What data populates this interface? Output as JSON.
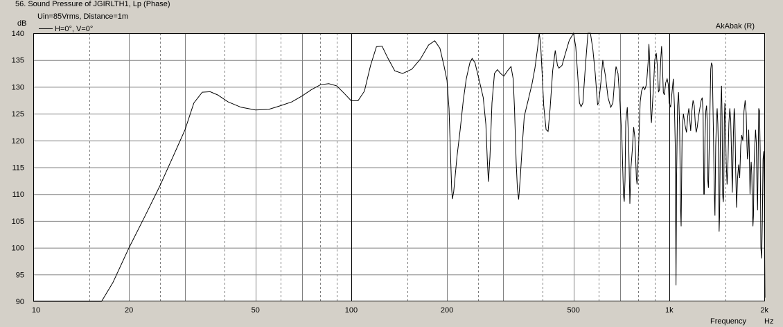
{
  "window": {
    "title": "56. Sound Pressure of JGIRLTH1, Lp (Phase)",
    "conditions": "Uin=85Vrms, Distance=1m",
    "watermark": "AkAbak (R)"
  },
  "chart_data": {
    "type": "line",
    "title": "56. Sound Pressure of JGIRLTH1, Lp (Phase)",
    "subtitle": "Uin=85Vrms, Distance=1m",
    "ylabel": "dB",
    "xlabel": "Frequency",
    "xunit": "Hz",
    "xscale": "log",
    "xlim": [
      10,
      2000
    ],
    "ylim": [
      90,
      140
    ],
    "grid": true,
    "legend_position": "top-left",
    "colors": {
      "background": "#ffffff",
      "line": "#000000",
      "grid": "#808080"
    },
    "x_tick_labels": [
      {
        "x": 10,
        "label": "10"
      },
      {
        "x": 20,
        "label": "20"
      },
      {
        "x": 50,
        "label": "50"
      },
      {
        "x": 100,
        "label": "100"
      },
      {
        "x": 200,
        "label": "200"
      },
      {
        "x": 500,
        "label": "500"
      },
      {
        "x": 1000,
        "label": "1k"
      },
      {
        "x": 2000,
        "label": "2k"
      }
    ],
    "y_ticks": [
      90,
      95,
      100,
      105,
      110,
      115,
      120,
      125,
      130,
      135,
      140
    ],
    "series": [
      {
        "name": "H=0°, V=0°",
        "points": [
          [
            10,
            90
          ],
          [
            16.4,
            90
          ],
          [
            17.8,
            93.5
          ],
          [
            20,
            100
          ],
          [
            22.5,
            106
          ],
          [
            25,
            111.5
          ],
          [
            28,
            118
          ],
          [
            30,
            122
          ],
          [
            32,
            127
          ],
          [
            34,
            129
          ],
          [
            36,
            129.1
          ],
          [
            38,
            128.5
          ],
          [
            41,
            127.2
          ],
          [
            45,
            126.2
          ],
          [
            50,
            125.7
          ],
          [
            55,
            125.8
          ],
          [
            60,
            126.5
          ],
          [
            65,
            127.2
          ],
          [
            70,
            128.3
          ],
          [
            75,
            129.5
          ],
          [
            80,
            130.4
          ],
          [
            85,
            130.6
          ],
          [
            90,
            130.2
          ],
          [
            95,
            128.8
          ],
          [
            100,
            127.4
          ],
          [
            105,
            127.4
          ],
          [
            110,
            129.2
          ],
          [
            115,
            134
          ],
          [
            120,
            137.5
          ],
          [
            125,
            137.6
          ],
          [
            130,
            135.5
          ],
          [
            137,
            133
          ],
          [
            145,
            132.5
          ],
          [
            155,
            133.3
          ],
          [
            165,
            135.2
          ],
          [
            175,
            137.8
          ],
          [
            183,
            138.6
          ],
          [
            190,
            137.2
          ],
          [
            196,
            133.8
          ],
          [
            200,
            131.2
          ],
          [
            203,
            126
          ],
          [
            205,
            118
          ],
          [
            207,
            110.8
          ],
          [
            208,
            109.1
          ],
          [
            210,
            110.5
          ],
          [
            215,
            117
          ],
          [
            220,
            122
          ],
          [
            225,
            127.5
          ],
          [
            230,
            131.5
          ],
          [
            236,
            134.5
          ],
          [
            240,
            135.3
          ],
          [
            245,
            134.5
          ],
          [
            252,
            131.5
          ],
          [
            260,
            128
          ],
          [
            265,
            123
          ],
          [
            268,
            116
          ],
          [
            270,
            112.3
          ],
          [
            273,
            117
          ],
          [
            277,
            127
          ],
          [
            282,
            132.5
          ],
          [
            288,
            133.2
          ],
          [
            295,
            132.5
          ],
          [
            302,
            132
          ],
          [
            310,
            133
          ],
          [
            318,
            133.8
          ],
          [
            323,
            131.5
          ],
          [
            326,
            126
          ],
          [
            330,
            116
          ],
          [
            333,
            111
          ],
          [
            336,
            109
          ],
          [
            340,
            113
          ],
          [
            345,
            119
          ],
          [
            350,
            124.5
          ],
          [
            360,
            127.5
          ],
          [
            370,
            130.5
          ],
          [
            378,
            133.5
          ],
          [
            385,
            137
          ],
          [
            390,
            140
          ],
          [
            394,
            138
          ],
          [
            398,
            133
          ],
          [
            403,
            126.5
          ],
          [
            410,
            122
          ],
          [
            416,
            121.7
          ],
          [
            422,
            126
          ],
          [
            430,
            133
          ],
          [
            438,
            136.8
          ],
          [
            445,
            134
          ],
          [
            450,
            133.5
          ],
          [
            460,
            134
          ],
          [
            470,
            136
          ],
          [
            485,
            138.7
          ],
          [
            500,
            140
          ],
          [
            508,
            137.5
          ],
          [
            515,
            132.5
          ],
          [
            522,
            127
          ],
          [
            528,
            126.3
          ],
          [
            535,
            127
          ],
          [
            545,
            134
          ],
          [
            555,
            140
          ],
          [
            565,
            140
          ],
          [
            575,
            137
          ],
          [
            585,
            132.5
          ],
          [
            595,
            126.7
          ],
          [
            600,
            127
          ],
          [
            610,
            131
          ],
          [
            618,
            135
          ],
          [
            630,
            132
          ],
          [
            642,
            128
          ],
          [
            655,
            126.2
          ],
          [
            665,
            127
          ],
          [
            672,
            130.5
          ],
          [
            680,
            133.8
          ],
          [
            690,
            132.5
          ],
          [
            700,
            127
          ],
          [
            710,
            120
          ],
          [
            718,
            109.8
          ],
          [
            722,
            108.6
          ],
          [
            726,
            112.5
          ],
          [
            730,
            123.5
          ],
          [
            738,
            126.2
          ],
          [
            745,
            120
          ],
          [
            752,
            108.2
          ],
          [
            758,
            115
          ],
          [
            765,
            118.2
          ],
          [
            773,
            122.5
          ],
          [
            780,
            120.5
          ],
          [
            788,
            113
          ],
          [
            792,
            111.8
          ],
          [
            800,
            118
          ],
          [
            810,
            127.2
          ],
          [
            818,
            129.2
          ],
          [
            828,
            130
          ],
          [
            838,
            129.5
          ],
          [
            848,
            130.5
          ],
          [
            858,
            134.5
          ],
          [
            863,
            138
          ],
          [
            868,
            135
          ],
          [
            873,
            126
          ],
          [
            879,
            123.3
          ],
          [
            885,
            126.5
          ],
          [
            893,
            130.5
          ],
          [
            900,
            135
          ],
          [
            910,
            136.3
          ],
          [
            917,
            134
          ],
          [
            925,
            129
          ],
          [
            932,
            129.5
          ],
          [
            940,
            135
          ],
          [
            946,
            137.6
          ],
          [
            952,
            134
          ],
          [
            958,
            129
          ],
          [
            965,
            128.5
          ],
          [
            975,
            130.8
          ],
          [
            985,
            131.5
          ],
          [
            993,
            130.5
          ],
          [
            1000,
            127
          ],
          [
            1010,
            126.2
          ],
          [
            1022,
            129.5
          ],
          [
            1030,
            131.5
          ],
          [
            1038,
            126.5
          ],
          [
            1045,
            118.5
          ],
          [
            1050,
            93
          ],
          [
            1055,
            113.5
          ],
          [
            1062,
            126.5
          ],
          [
            1070,
            129
          ],
          [
            1078,
            123
          ],
          [
            1085,
            107.5
          ],
          [
            1090,
            104
          ],
          [
            1098,
            122
          ],
          [
            1108,
            125
          ],
          [
            1120,
            123
          ],
          [
            1133,
            121.5
          ],
          [
            1143,
            124.5
          ],
          [
            1152,
            126
          ],
          [
            1160,
            124
          ],
          [
            1168,
            121.8
          ],
          [
            1178,
            125.5
          ],
          [
            1188,
            127.5
          ],
          [
            1198,
            126.5
          ],
          [
            1208,
            123
          ],
          [
            1215,
            121.5
          ],
          [
            1225,
            122.5
          ],
          [
            1236,
            124.5
          ],
          [
            1248,
            126
          ],
          [
            1260,
            127.5
          ],
          [
            1270,
            128
          ],
          [
            1278,
            125
          ],
          [
            1284,
            110
          ],
          [
            1289,
            110
          ],
          [
            1295,
            120.5
          ],
          [
            1303,
            125.5
          ],
          [
            1310,
            126.5
          ],
          [
            1316,
            123.5
          ],
          [
            1322,
            112.5
          ],
          [
            1328,
            111.2
          ],
          [
            1335,
            118
          ],
          [
            1342,
            125
          ],
          [
            1350,
            133.3
          ],
          [
            1358,
            134.5
          ],
          [
            1366,
            134
          ],
          [
            1372,
            126.5
          ],
          [
            1378,
            120
          ],
          [
            1385,
            110.5
          ],
          [
            1392,
            106
          ],
          [
            1400,
            119
          ],
          [
            1408,
            124
          ],
          [
            1415,
            126
          ],
          [
            1422,
            123
          ],
          [
            1428,
            118
          ],
          [
            1435,
            103
          ],
          [
            1440,
            106
          ],
          [
            1446,
            118
          ],
          [
            1452,
            126
          ],
          [
            1460,
            130.2
          ],
          [
            1466,
            124.5
          ],
          [
            1472,
            110
          ],
          [
            1478,
            108.5
          ],
          [
            1484,
            110
          ],
          [
            1490,
            123.5
          ],
          [
            1496,
            127
          ],
          [
            1500,
            125
          ],
          [
            1510,
            116
          ],
          [
            1520,
            111.8
          ],
          [
            1530,
            116
          ],
          [
            1540,
            123.2
          ],
          [
            1550,
            126
          ],
          [
            1560,
            124
          ],
          [
            1570,
            117
          ],
          [
            1578,
            110.3
          ],
          [
            1585,
            115
          ],
          [
            1592,
            121.5
          ],
          [
            1600,
            126
          ],
          [
            1608,
            124.5
          ],
          [
            1618,
            114
          ],
          [
            1628,
            107.5
          ],
          [
            1640,
            113
          ],
          [
            1653,
            115.5
          ],
          [
            1665,
            113
          ],
          [
            1678,
            119
          ],
          [
            1690,
            121
          ],
          [
            1703,
            120
          ],
          [
            1718,
            125.5
          ],
          [
            1733,
            127.5
          ],
          [
            1746,
            125
          ],
          [
            1755,
            119
          ],
          [
            1762,
            116.5
          ],
          [
            1770,
            118
          ],
          [
            1778,
            122
          ],
          [
            1786,
            118
          ],
          [
            1795,
            110
          ],
          [
            1803,
            114
          ],
          [
            1810,
            116
          ],
          [
            1818,
            113.5
          ],
          [
            1825,
            108.5
          ],
          [
            1833,
            104
          ],
          [
            1840,
            106
          ],
          [
            1848,
            115
          ],
          [
            1858,
            119
          ],
          [
            1868,
            122
          ],
          [
            1878,
            119.5
          ],
          [
            1888,
            111
          ],
          [
            1895,
            107
          ],
          [
            1903,
            116
          ],
          [
            1912,
            126
          ],
          [
            1922,
            125.5
          ],
          [
            1932,
            118
          ],
          [
            1942,
            100
          ],
          [
            1952,
            98
          ],
          [
            1962,
            105
          ],
          [
            1972,
            116.5
          ],
          [
            1982,
            118
          ],
          [
            1990,
            112
          ],
          [
            1996,
            98
          ],
          [
            2000,
            90.7
          ]
        ]
      }
    ]
  }
}
